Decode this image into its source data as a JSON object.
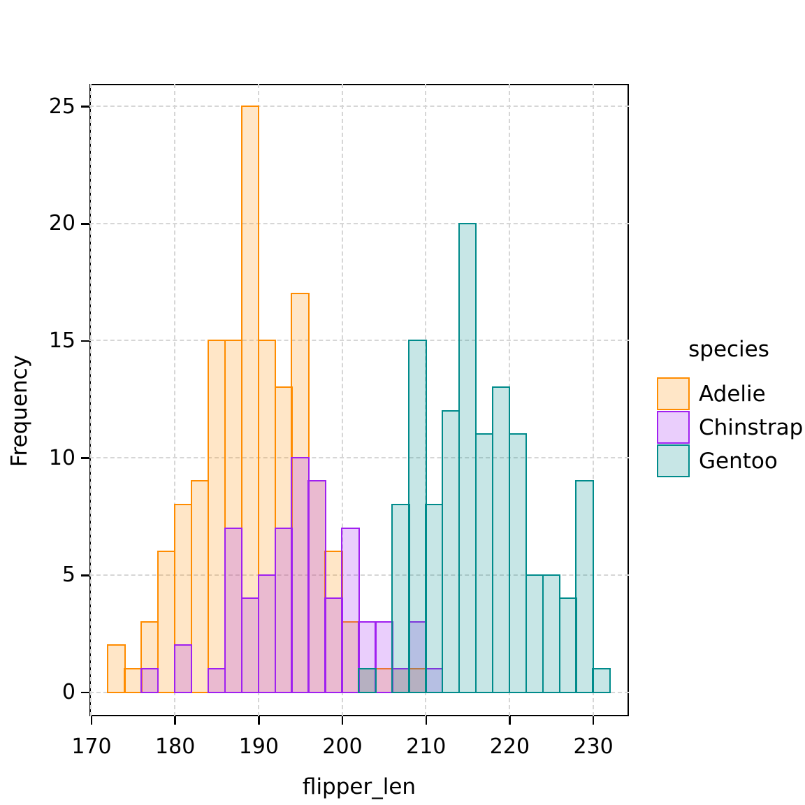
{
  "chart_data": {
    "type": "bar",
    "subtype": "overlaid-histogram",
    "title": "",
    "xlabel": "flipper_len",
    "ylabel": "Frequency",
    "x_ticks": [
      170,
      180,
      190,
      200,
      210,
      220,
      230
    ],
    "y_ticks": [
      0,
      5,
      10,
      15,
      20,
      25
    ],
    "xlim": [
      169.75,
      234.25
    ],
    "ylim": [
      -1.01,
      25.97
    ],
    "bin_width": 2,
    "grid": "major-only, dashed",
    "colors": {
      "grid": "#d6d6d6",
      "spine": "#000000",
      "text": "#000000",
      "background": "#ffffff"
    },
    "legend": {
      "title": "species",
      "position": "right",
      "entries": [
        "Adelie",
        "Chinstrap",
        "Gentoo"
      ]
    },
    "series": [
      {
        "name": "Adelie",
        "border_color": "#FF8C00",
        "fill_color": "rgba(255,140,0,0.22)",
        "bin_start": 172,
        "counts": [
          2,
          1,
          3,
          6,
          8,
          9,
          15,
          15,
          25,
          15,
          13,
          17,
          9,
          6,
          3,
          1,
          1,
          1,
          1
        ]
      },
      {
        "name": "Chinstrap",
        "border_color": "#A020F0",
        "fill_color": "rgba(160,32,240,0.22)",
        "bin_start": 176,
        "counts": [
          1,
          0,
          2,
          0,
          1,
          7,
          4,
          5,
          7,
          10,
          9,
          4,
          7,
          3,
          3,
          1,
          3,
          1
        ]
      },
      {
        "name": "Gentoo",
        "border_color": "#008B8B",
        "fill_color": "rgba(0,139,139,0.22)",
        "bin_start": 202,
        "counts": [
          1,
          0,
          8,
          15,
          8,
          12,
          20,
          11,
          13,
          11,
          5,
          5,
          4,
          9,
          1
        ]
      }
    ]
  }
}
